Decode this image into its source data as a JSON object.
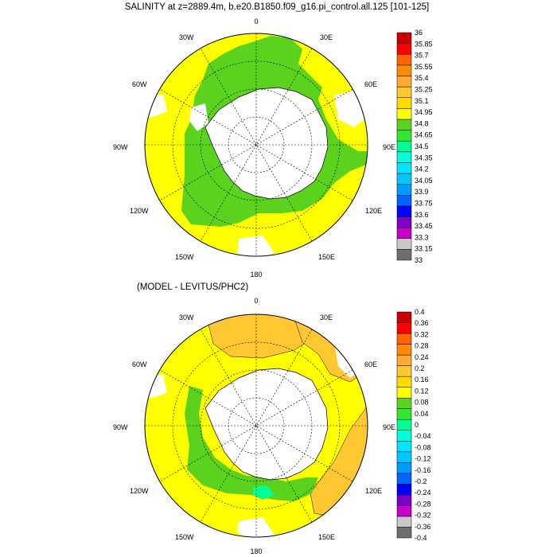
{
  "top_panel": {
    "title": "SALINITY at z=2889.4m, b.e20.B1850.f09_g16.pi_control.all.125 [101-125]",
    "lon_labels": {
      "n0": "0",
      "n30e": "30E",
      "n60e": "60E",
      "n90e": "90E",
      "n120e": "120E",
      "n150e": "150E",
      "n180": "180",
      "n150w": "150W",
      "n120w": "120W",
      "n90w": "90W",
      "n60w": "60W",
      "n30w": "30W"
    },
    "colorbar": {
      "labels": [
        "36",
        "35.85",
        "35.7",
        "35.55",
        "35.4",
        "35.25",
        "35.1",
        "34.95",
        "34.8",
        "34.65",
        "34.5",
        "34.35",
        "34.2",
        "34.05",
        "33.9",
        "33.75",
        "33.6",
        "33.45",
        "33.3",
        "33.15",
        "33"
      ],
      "colors": [
        "#6e6e6e",
        "#c8c8c8",
        "#c800c8",
        "#7d00c8",
        "#0000ff",
        "#0064ff",
        "#009bff",
        "#00c8ff",
        "#00e6ff",
        "#00ffdc",
        "#00ff96",
        "#32e632",
        "#5ad21e",
        "#ffff00",
        "#ffdc00",
        "#ffc832",
        "#ffaa32",
        "#ff8c00",
        "#ff6400",
        "#ff0000",
        "#c80000"
      ]
    }
  },
  "bottom_panel": {
    "title": "(MODEL - LEVITUS/PHC2)",
    "lon_labels": {
      "n0": "0",
      "n30e": "30E",
      "n60e": "60E",
      "n90e": "90E",
      "n120e": "120E",
      "n150e": "150E",
      "n180": "180",
      "n150w": "150W",
      "n120w": "120W",
      "n90w": "90W",
      "n60w": "60W",
      "n30w": "30W"
    },
    "colorbar": {
      "labels": [
        "0.4",
        "0.36",
        "0.32",
        "0.28",
        "0.24",
        "0.2",
        "0.16",
        "0.12",
        "0.08",
        "0.04",
        "0",
        "-0.04",
        "-0.08",
        "-0.12",
        "-0.16",
        "-0.2",
        "-0.24",
        "-0.28",
        "-0.32",
        "-0.36",
        "-0.4"
      ],
      "colors": [
        "#6e6e6e",
        "#c8c8c8",
        "#c800c8",
        "#7d00c8",
        "#0000ff",
        "#0064ff",
        "#009bff",
        "#00c8ff",
        "#00e6ff",
        "#00ffdc",
        "#00ff96",
        "#32e632",
        "#5ad21e",
        "#ffff00",
        "#ffdc00",
        "#ffc832",
        "#ffaa32",
        "#ff8c00",
        "#ff6400",
        "#ff0000",
        "#c80000"
      ]
    }
  },
  "colors": {
    "yellow": "#ffff00",
    "green": "#5ad21e",
    "orange": "#ffc832",
    "cyan_green": "#00ff96",
    "land": "#ffffff",
    "missing": "#ffffff"
  }
}
